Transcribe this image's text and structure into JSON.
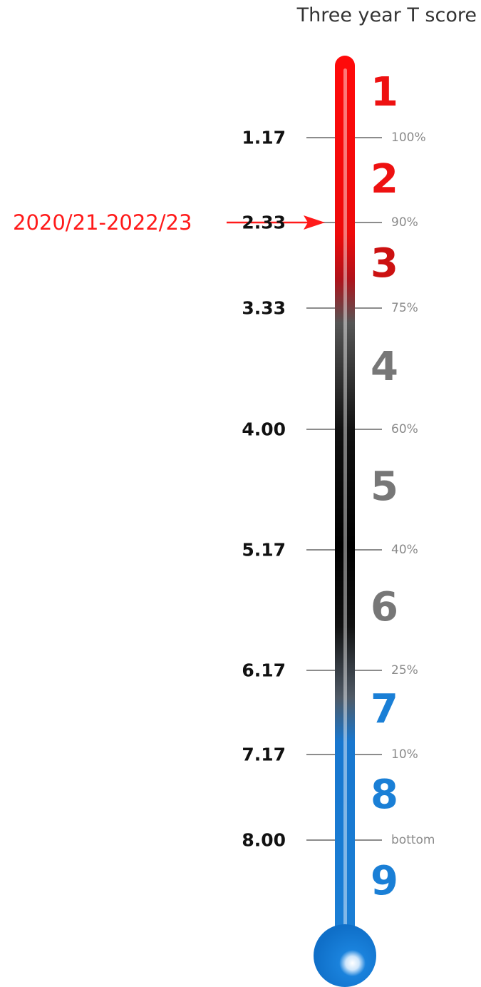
{
  "chart_data": {
    "type": "thermometer",
    "title": "Three year T score",
    "thresholds": [
      {
        "score": "1.17",
        "percentile": "100%"
      },
      {
        "score": "2.33",
        "percentile": "90%"
      },
      {
        "score": "3.33",
        "percentile": "75%"
      },
      {
        "score": "4.00",
        "percentile": "60%"
      },
      {
        "score": "5.17",
        "percentile": "40%"
      },
      {
        "score": "6.17",
        "percentile": "25%"
      },
      {
        "score": "7.17",
        "percentile": "10%"
      },
      {
        "score": "8.00",
        "percentile": "bottom"
      }
    ],
    "bands": [
      {
        "label": "1",
        "color": "#ee1111"
      },
      {
        "label": "2",
        "color": "#ee1111"
      },
      {
        "label": "3",
        "color": "#cc1111"
      },
      {
        "label": "4",
        "color": "#777777"
      },
      {
        "label": "5",
        "color": "#777777"
      },
      {
        "label": "6",
        "color": "#777777"
      },
      {
        "label": "7",
        "color": "#1a7fd6"
      },
      {
        "label": "8",
        "color": "#1a7fd6"
      },
      {
        "label": "9",
        "color": "#1a7fd6"
      }
    ],
    "marker": {
      "label": "2020/21-2022/23",
      "score": 2.33,
      "color": "#ff1a1a"
    },
    "tube_colors": {
      "top": "#ff0a0a",
      "middle": "#000000",
      "bottom": "#1a7fd6"
    }
  }
}
